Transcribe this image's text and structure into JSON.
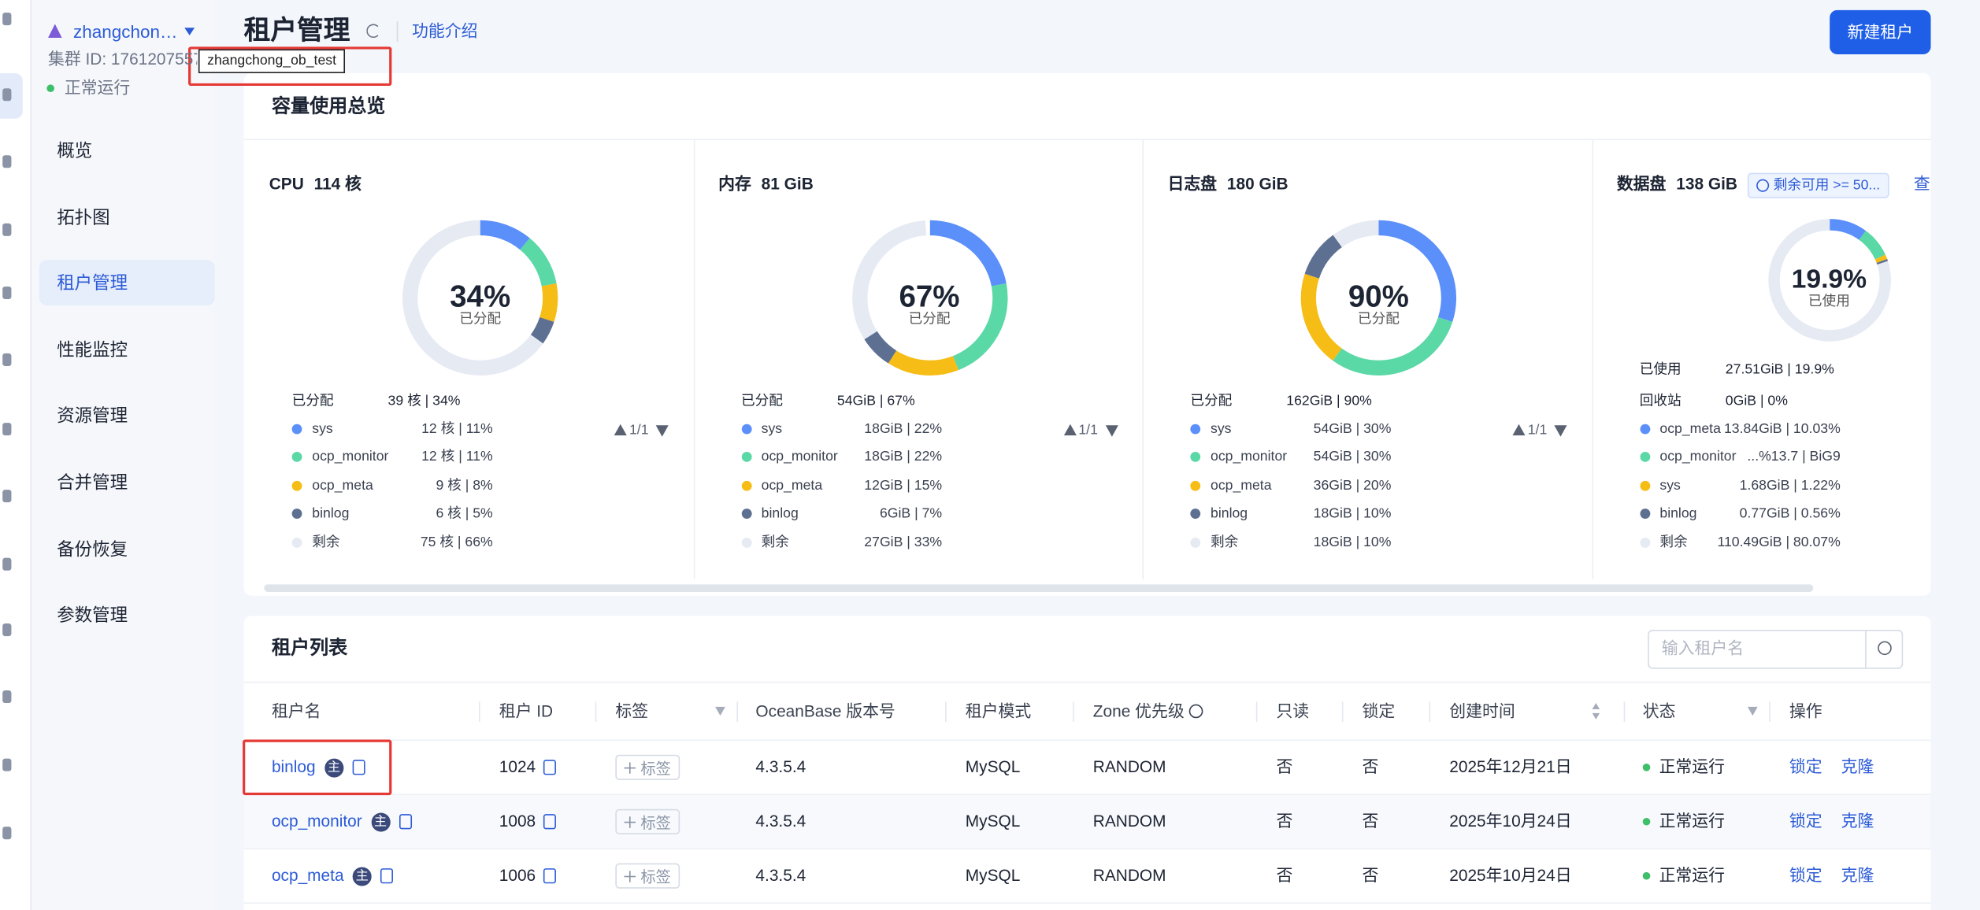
{
  "sidebar": {
    "cluster_name": "zhangchon…",
    "cluster_id": "集群 ID: 1761207557",
    "tooltip": "zhangchong_ob_test",
    "status": "正常运行",
    "menu": [
      "概览",
      "拓扑图",
      "租户管理",
      "性能监控",
      "资源管理",
      "合并管理",
      "备份恢复",
      "参数管理"
    ],
    "active": 2
  },
  "header": {
    "title": "租户管理",
    "link": "功能介绍",
    "button": "新建租户"
  },
  "capacity": {
    "title": "容量使用总览",
    "cards": [
      {
        "title": "CPU",
        "total": "114 核",
        "center": "34%",
        "center_label": "已分配",
        "summary": [
          {
            "label": "已分配",
            "value": "39 核 | 34%"
          }
        ],
        "pager": "1/1",
        "rows": [
          {
            "name": "sys",
            "value": "12 核 | 11%",
            "pct": 11,
            "color": "#5b8ff9"
          },
          {
            "name": "ocp_monitor",
            "value": "12 核 | 11%",
            "pct": 11,
            "color": "#5ad8a6"
          },
          {
            "name": "ocp_meta",
            "value": "9 核 | 8%",
            "pct": 8,
            "color": "#f6bd16"
          },
          {
            "name": "binlog",
            "value": "6 核 | 5%",
            "pct": 5,
            "color": "#5d7092"
          },
          {
            "name": "剩余",
            "value": "75 核 | 66%",
            "pct": 66,
            "color": "#e6eaf3"
          }
        ]
      },
      {
        "title": "内存",
        "total": "81 GiB",
        "center": "67%",
        "center_label": "已分配",
        "summary": [
          {
            "label": "已分配",
            "value": "54GiB | 67%"
          }
        ],
        "pager": "1/1",
        "rows": [
          {
            "name": "sys",
            "value": "18GiB | 22%",
            "pct": 22,
            "color": "#5b8ff9"
          },
          {
            "name": "ocp_monitor",
            "value": "18GiB | 22%",
            "pct": 22,
            "color": "#5ad8a6"
          },
          {
            "name": "ocp_meta",
            "value": "12GiB | 15%",
            "pct": 15,
            "color": "#f6bd16"
          },
          {
            "name": "binlog",
            "value": "6GiB | 7%",
            "pct": 7,
            "color": "#5d7092"
          },
          {
            "name": "剩余",
            "value": "27GiB | 33%",
            "pct": 33,
            "color": "#e6eaf3"
          }
        ]
      },
      {
        "title": "日志盘",
        "total": "180 GiB",
        "center": "90%",
        "center_label": "已分配",
        "summary": [
          {
            "label": "已分配",
            "value": "162GiB | 90%"
          }
        ],
        "pager": "1/1",
        "rows": [
          {
            "name": "sys",
            "value": "54GiB | 30%",
            "pct": 30,
            "color": "#5b8ff9"
          },
          {
            "name": "ocp_monitor",
            "value": "54GiB | 30%",
            "pct": 30,
            "color": "#5ad8a6"
          },
          {
            "name": "ocp_meta",
            "value": "36GiB | 20%",
            "pct": 20,
            "color": "#f6bd16"
          },
          {
            "name": "binlog",
            "value": "18GiB | 10%",
            "pct": 10,
            "color": "#5d7092"
          },
          {
            "name": "剩余",
            "value": "18GiB | 10%",
            "pct": 10,
            "color": "#e6eaf3"
          }
        ]
      },
      {
        "title": "数据盘",
        "total": "138 GiB",
        "center": "19.9%",
        "center_label": "已使用",
        "badge": "剩余可用 >= 50...",
        "link": "查看",
        "summary": [
          {
            "label": "已使用",
            "value": "27.51GiB | 19.9%"
          },
          {
            "label": "回收站",
            "value": "0GiB | 0%"
          }
        ],
        "rows": [
          {
            "name": "ocp_meta",
            "value": "13.84GiB | 10.03%",
            "pct": 10.03,
            "color": "#5b8ff9"
          },
          {
            "name": "ocp_monitor",
            "value": "...%13.7 | BiG9",
            "pct": 8.12,
            "color": "#5ad8a6"
          },
          {
            "name": "sys",
            "value": "1.68GiB | 1.22%",
            "pct": 1.22,
            "color": "#f6bd16"
          },
          {
            "name": "binlog",
            "value": "0.77GiB | 0.56%",
            "pct": 0.56,
            "color": "#5d7092"
          },
          {
            "name": "剩余",
            "value": "110.49GiB | 80.07%",
            "pct": 80.07,
            "color": "#e6eaf3"
          }
        ]
      }
    ]
  },
  "table": {
    "title": "租户列表",
    "search_placeholder": "输入租户名",
    "badge": "主",
    "columns": [
      "租户名",
      "租户 ID",
      "标签",
      "OceanBase 版本号",
      "租户模式",
      "Zone 优先级",
      "只读",
      "锁定",
      "创建时间",
      "状态",
      "操作"
    ],
    "rows": [
      {
        "name": "binlog",
        "id": 1024,
        "tag": "标签",
        "version": "4.3.5.4",
        "mode": "MySQL",
        "zone": "RANDOM",
        "readonly": "否",
        "locked": "否",
        "created": "2025年12月21日",
        "status": "正常运行",
        "actions": [
          "锁定",
          "克隆"
        ]
      },
      {
        "name": "ocp_monitor",
        "id": 1008,
        "tag": "标签",
        "version": "4.3.5.4",
        "mode": "MySQL",
        "zone": "RANDOM",
        "readonly": "否",
        "locked": "否",
        "created": "2025年10月24日",
        "status": "正常运行",
        "actions": [
          "锁定",
          "克隆"
        ]
      },
      {
        "name": "ocp_meta",
        "id": 1006,
        "tag": "标签",
        "version": "4.3.5.4",
        "mode": "MySQL",
        "zone": "RANDOM",
        "readonly": "否",
        "locked": "否",
        "created": "2025年10月24日",
        "status": "正常运行",
        "actions": [
          "锁定",
          "克隆"
        ]
      }
    ]
  }
}
